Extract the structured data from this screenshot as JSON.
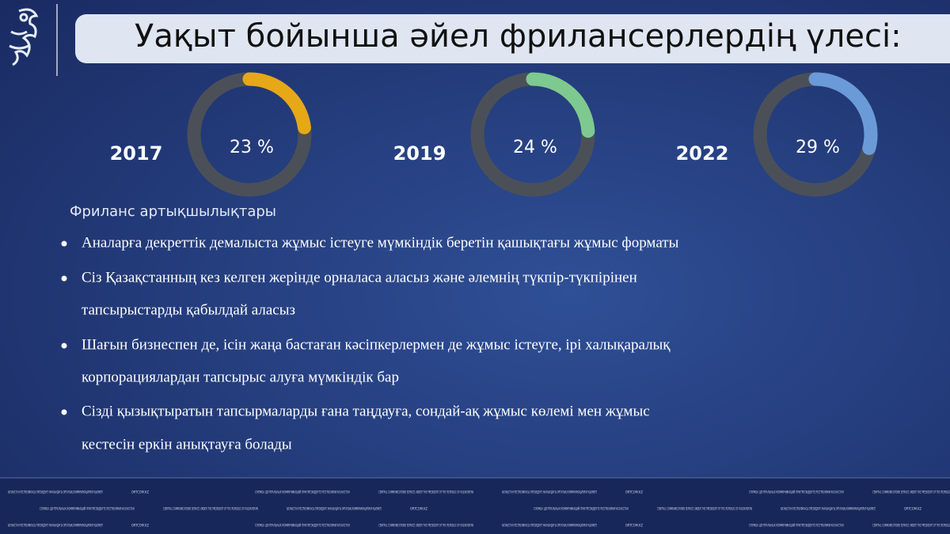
{
  "title": "Уақыт бойынша әйел фрилансерлердің үлесі:",
  "chart_data": [
    {
      "type": "pie",
      "title": "2017",
      "values": [
        23
      ],
      "value_labels": [
        "23 %"
      ],
      "color": "#e6a817"
    },
    {
      "type": "pie",
      "title": "2019",
      "values": [
        24
      ],
      "value_labels": [
        "24 %"
      ],
      "color": "#7ec98f"
    },
    {
      "type": "pie",
      "title": "2022",
      "values": [
        29
      ],
      "value_labels": [
        "29 %"
      ],
      "color": "#6a9bd8"
    }
  ],
  "section_title": "Фриланс артықшылықтары",
  "bullets": [
    [
      "Аналарға декреттік демалыста жұмыс істеуге мүмкіндік беретін қашықтағы жұмыс форматы"
    ],
    [
      "Сіз Қазақстанның кез келген жерінде орналаса аласыз және әлемнің түкпір-түкпірінен",
      "тапсырыстарды қабылдай аласыз"
    ],
    [
      "Шағын бизнеспен де, ісін жаңа бастаған кәсіпкерлермен де жұмыс істеуге, ірі халықаралық",
      "корпорациялардан тапсырыс алуға мүмкіндік бар"
    ],
    [
      "Сізді қызықтыратын тапсырмаларды ғана таңдауға, сондай-ақ жұмыс көлемі мен жұмыс",
      "кестесін еркін анықтауға болады"
    ]
  ],
  "footer": [
    "ҚАЗАҚСТАН РЕСПУБЛИКАСЫ ПРЕЗИДЕНТІ ЖАНЫНДАҒЫ ОРТАЛЫҚ КОММУНИКАЦИЯЛАР ҚЫЗМЕТІ",
    "ORTCOM.KZ",
    "СЛУЖБА ЦЕНТРАЛЬНЫХ КОММУНИКАЦИЙ ПРИ ПРЕЗИДЕНТЕ РЕСПУБЛИКИ КАЗАХСТАН",
    "CENTRAL COMMUNICATIONS SERVICE UNDER THE PRESIDENT OF THE REPUBLIC OF KAZAKHSTAN"
  ]
}
